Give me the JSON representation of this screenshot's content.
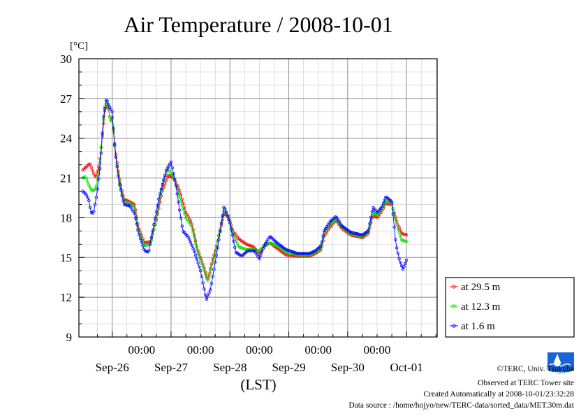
{
  "chart_data": {
    "type": "line",
    "title": "Air Temperature / 2008-10-01",
    "ylabel": "[°C]",
    "xlabel": "(LST)",
    "ylim": [
      9,
      30
    ],
    "yticks": [
      9,
      12,
      15,
      18,
      21,
      24,
      27,
      30
    ],
    "y_minor_step": 1,
    "x_range_days": [
      0,
      6
    ],
    "x_time_ticks": [
      "00:00",
      "00:00",
      "00:00",
      "00:00",
      "00:00"
    ],
    "x_date_labels": [
      "Sep-26",
      "Sep-27",
      "Sep-28",
      "Sep-29",
      "Sep-30",
      "Oct-01"
    ],
    "grid": true,
    "legend_position": "right",
    "series": [
      {
        "name": "at 29.5 m",
        "color": "#ff0000",
        "anchors": [
          [
            0.0,
            21.6
          ],
          [
            0.05,
            21.8
          ],
          [
            0.12,
            22.1
          ],
          [
            0.18,
            21.4
          ],
          [
            0.22,
            21.0
          ],
          [
            0.28,
            22.0
          ],
          [
            0.33,
            24.0
          ],
          [
            0.38,
            26.3
          ],
          [
            0.43,
            26.4
          ],
          [
            0.47,
            25.3
          ],
          [
            0.5,
            25.6
          ],
          [
            0.55,
            23.2
          ],
          [
            0.62,
            21.0
          ],
          [
            0.7,
            19.4
          ],
          [
            0.8,
            19.2
          ],
          [
            0.88,
            19.0
          ],
          [
            0.95,
            17.2
          ],
          [
            1.05,
            16.1
          ],
          [
            1.15,
            16.2
          ],
          [
            1.25,
            17.8
          ],
          [
            1.35,
            20.0
          ],
          [
            1.45,
            21.2
          ],
          [
            1.55,
            21.0
          ],
          [
            1.65,
            20.0
          ],
          [
            1.75,
            18.4
          ],
          [
            1.85,
            17.6
          ],
          [
            1.95,
            15.6
          ],
          [
            2.05,
            14.4
          ],
          [
            2.12,
            13.3
          ],
          [
            2.18,
            14.4
          ],
          [
            2.28,
            16.0
          ],
          [
            2.4,
            18.3
          ],
          [
            2.48,
            18.1
          ],
          [
            2.55,
            17.0
          ],
          [
            2.65,
            16.4
          ],
          [
            2.78,
            16.0
          ],
          [
            2.9,
            15.8
          ],
          [
            3.0,
            15.3
          ],
          [
            3.1,
            15.9
          ],
          [
            3.18,
            16.1
          ],
          [
            3.3,
            15.7
          ],
          [
            3.45,
            15.2
          ],
          [
            3.65,
            15.1
          ],
          [
            3.85,
            15.1
          ],
          [
            3.95,
            15.3
          ],
          [
            4.05,
            15.6
          ],
          [
            4.1,
            16.6
          ],
          [
            4.2,
            17.3
          ],
          [
            4.3,
            17.8
          ],
          [
            4.4,
            17.2
          ],
          [
            4.55,
            16.7
          ],
          [
            4.65,
            16.6
          ],
          [
            4.75,
            16.5
          ],
          [
            4.85,
            16.8
          ],
          [
            4.93,
            18.2
          ],
          [
            5.0,
            18.0
          ],
          [
            5.08,
            18.5
          ],
          [
            5.15,
            19.1
          ],
          [
            5.25,
            19.0
          ],
          [
            5.35,
            17.5
          ],
          [
            5.42,
            16.8
          ],
          [
            5.5,
            16.7
          ]
        ]
      },
      {
        "name": "at 12.3 m",
        "color": "#00dd00",
        "anchors": [
          [
            0.0,
            21.0
          ],
          [
            0.05,
            21.1
          ],
          [
            0.1,
            20.5
          ],
          [
            0.16,
            20.0
          ],
          [
            0.22,
            20.2
          ],
          [
            0.28,
            21.5
          ],
          [
            0.33,
            24.3
          ],
          [
            0.38,
            26.6
          ],
          [
            0.43,
            26.6
          ],
          [
            0.47,
            25.2
          ],
          [
            0.5,
            25.5
          ],
          [
            0.55,
            23.0
          ],
          [
            0.62,
            20.8
          ],
          [
            0.7,
            19.2
          ],
          [
            0.8,
            19.1
          ],
          [
            0.88,
            18.8
          ],
          [
            0.95,
            17.0
          ],
          [
            1.05,
            15.9
          ],
          [
            1.15,
            16.0
          ],
          [
            1.25,
            17.9
          ],
          [
            1.35,
            20.5
          ],
          [
            1.45,
            21.7
          ],
          [
            1.55,
            21.0
          ],
          [
            1.65,
            19.5
          ],
          [
            1.75,
            18.0
          ],
          [
            1.85,
            17.4
          ],
          [
            1.95,
            15.4
          ],
          [
            2.05,
            14.2
          ],
          [
            2.12,
            13.2
          ],
          [
            2.18,
            14.0
          ],
          [
            2.28,
            16.0
          ],
          [
            2.4,
            18.6
          ],
          [
            2.48,
            18.0
          ],
          [
            2.55,
            16.8
          ],
          [
            2.65,
            15.8
          ],
          [
            2.78,
            15.6
          ],
          [
            2.9,
            15.6
          ],
          [
            3.0,
            15.5
          ],
          [
            3.1,
            16.0
          ],
          [
            3.18,
            16.1
          ],
          [
            3.3,
            15.9
          ],
          [
            3.45,
            15.4
          ],
          [
            3.65,
            15.2
          ],
          [
            3.85,
            15.2
          ],
          [
            3.95,
            15.4
          ],
          [
            4.05,
            15.7
          ],
          [
            4.1,
            16.9
          ],
          [
            4.2,
            17.5
          ],
          [
            4.3,
            17.9
          ],
          [
            4.4,
            17.3
          ],
          [
            4.55,
            16.8
          ],
          [
            4.65,
            16.7
          ],
          [
            4.75,
            16.6
          ],
          [
            4.85,
            16.9
          ],
          [
            4.93,
            18.4
          ],
          [
            5.0,
            18.2
          ],
          [
            5.08,
            18.7
          ],
          [
            5.15,
            19.3
          ],
          [
            5.25,
            19.1
          ],
          [
            5.35,
            17.2
          ],
          [
            5.42,
            16.3
          ],
          [
            5.5,
            16.2
          ]
        ]
      },
      {
        "name": "at 1.6 m",
        "color": "#0000ff",
        "anchors": [
          [
            0.0,
            20.0
          ],
          [
            0.05,
            19.8
          ],
          [
            0.1,
            19.4
          ],
          [
            0.14,
            18.4
          ],
          [
            0.18,
            18.3
          ],
          [
            0.24,
            19.8
          ],
          [
            0.3,
            22.0
          ],
          [
            0.35,
            25.5
          ],
          [
            0.4,
            27.0
          ],
          [
            0.45,
            26.4
          ],
          [
            0.5,
            26.0
          ],
          [
            0.55,
            23.0
          ],
          [
            0.62,
            20.6
          ],
          [
            0.7,
            19.0
          ],
          [
            0.8,
            18.9
          ],
          [
            0.88,
            18.3
          ],
          [
            0.95,
            16.8
          ],
          [
            1.05,
            15.5
          ],
          [
            1.12,
            15.4
          ],
          [
            1.2,
            17.3
          ],
          [
            1.3,
            19.6
          ],
          [
            1.42,
            21.6
          ],
          [
            1.5,
            22.2
          ],
          [
            1.58,
            20.5
          ],
          [
            1.7,
            17.0
          ],
          [
            1.8,
            16.5
          ],
          [
            1.9,
            15.4
          ],
          [
            2.0,
            14.0
          ],
          [
            2.1,
            11.8
          ],
          [
            2.17,
            12.6
          ],
          [
            2.28,
            15.4
          ],
          [
            2.4,
            18.9
          ],
          [
            2.5,
            17.6
          ],
          [
            2.6,
            15.4
          ],
          [
            2.7,
            15.1
          ],
          [
            2.8,
            15.5
          ],
          [
            2.92,
            15.5
          ],
          [
            3.0,
            14.9
          ],
          [
            3.08,
            15.9
          ],
          [
            3.18,
            16.6
          ],
          [
            3.3,
            16.1
          ],
          [
            3.45,
            15.6
          ],
          [
            3.65,
            15.3
          ],
          [
            3.85,
            15.3
          ],
          [
            3.95,
            15.5
          ],
          [
            4.05,
            15.9
          ],
          [
            4.1,
            17.0
          ],
          [
            4.2,
            17.7
          ],
          [
            4.3,
            18.1
          ],
          [
            4.4,
            17.4
          ],
          [
            4.55,
            16.9
          ],
          [
            4.65,
            16.8
          ],
          [
            4.75,
            16.7
          ],
          [
            4.85,
            17.0
          ],
          [
            4.93,
            18.8
          ],
          [
            5.0,
            18.4
          ],
          [
            5.08,
            18.8
          ],
          [
            5.15,
            19.6
          ],
          [
            5.25,
            19.2
          ],
          [
            5.32,
            16.0
          ],
          [
            5.38,
            14.8
          ],
          [
            5.44,
            14.1
          ],
          [
            5.5,
            14.8
          ]
        ]
      }
    ]
  },
  "credits": {
    "line1": "©TERC, Univ. Tsukuba",
    "line2": "Observed at TERC Tower site",
    "line3": "Created Automatically at 2008-10-01/23:32:28",
    "line4": "Data source : /home/hojyo/new/TERC-data/sorted_data/MET.30m.dat"
  },
  "logo": {
    "text": "TERC",
    "color": "#1a64d6"
  }
}
